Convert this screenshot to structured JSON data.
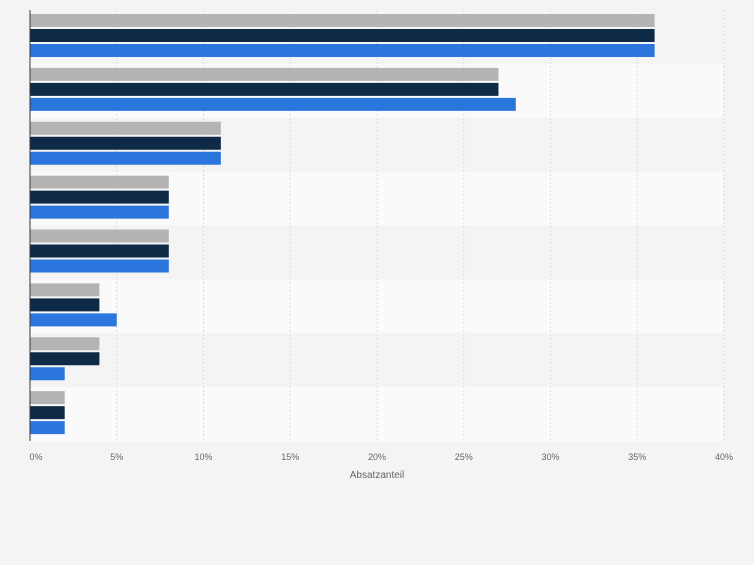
{
  "chart_data": {
    "type": "bar",
    "orientation": "horizontal",
    "xlabel": "Absatzanteil",
    "x_ticks": [
      "0%",
      "5%",
      "10%",
      "15%",
      "20%",
      "25%",
      "30%",
      "35%",
      "40%"
    ],
    "xlim": [
      0,
      40
    ],
    "grid": true,
    "category_count": 8,
    "series": [
      {
        "color": "#b4b4b4",
        "values": [
          36,
          27,
          11,
          8,
          8,
          4,
          4,
          2
        ]
      },
      {
        "color": "#0f2a47",
        "values": [
          36,
          27,
          11,
          8,
          8,
          4,
          4,
          2
        ]
      },
      {
        "color": "#2a76dd",
        "values": [
          36,
          28,
          11,
          8,
          8,
          5,
          2,
          2
        ]
      }
    ]
  }
}
